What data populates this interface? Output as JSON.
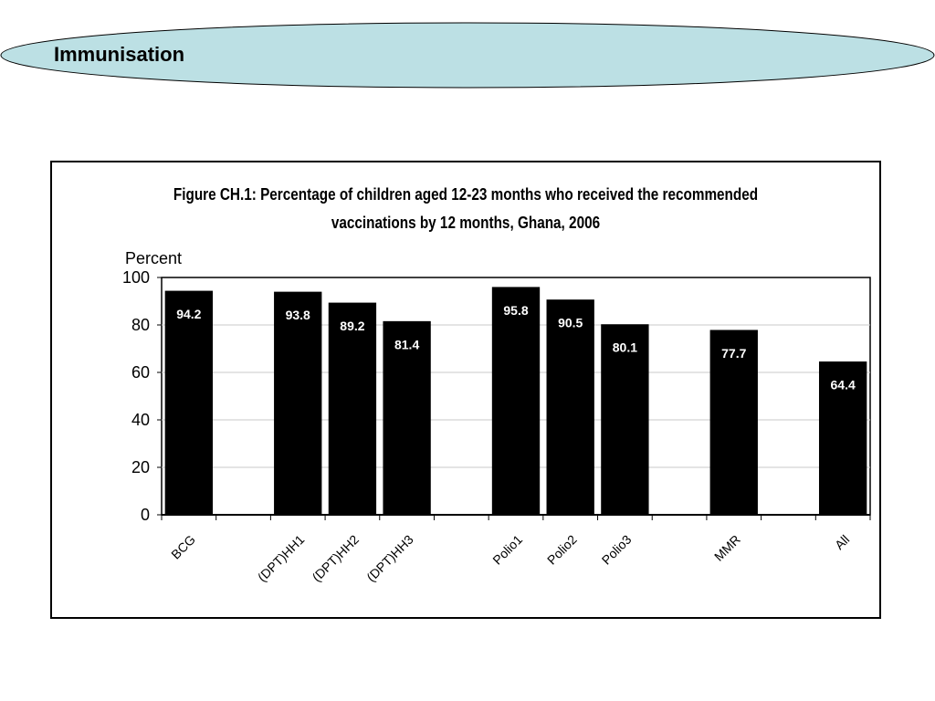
{
  "header": {
    "title": "Immunisation"
  },
  "colors": {
    "header_fill": "#bce0e4",
    "bar_fill": "#000000",
    "label_color": "#ffffff"
  },
  "chart_data": {
    "type": "bar",
    "title_line1": "Figure CH.1: Percentage of children aged 12-23 months who received the recommended",
    "title_line2": "vaccinations by 12 months, Ghana, 2006",
    "ylabel": "Percent",
    "xlabel": "",
    "ylim": [
      0,
      100
    ],
    "yticks": [
      0,
      20,
      40,
      60,
      80,
      100
    ],
    "grid": true,
    "categories": [
      "BCG",
      "",
      "(DPT)HH1",
      "(DPT)HH2",
      "(DPT)HH3",
      "",
      "Polio1",
      "Polio2",
      "Polio3",
      "",
      "MMR",
      "",
      "All"
    ],
    "values": [
      94.2,
      null,
      93.8,
      89.2,
      81.4,
      null,
      95.8,
      90.5,
      80.1,
      null,
      77.7,
      null,
      64.4
    ],
    "data_labels": [
      "94.2",
      "",
      "93.8",
      "89.2",
      "81.4",
      "",
      "95.8",
      "90.5",
      "80.1",
      "",
      "77.7",
      "",
      "64.4"
    ]
  }
}
